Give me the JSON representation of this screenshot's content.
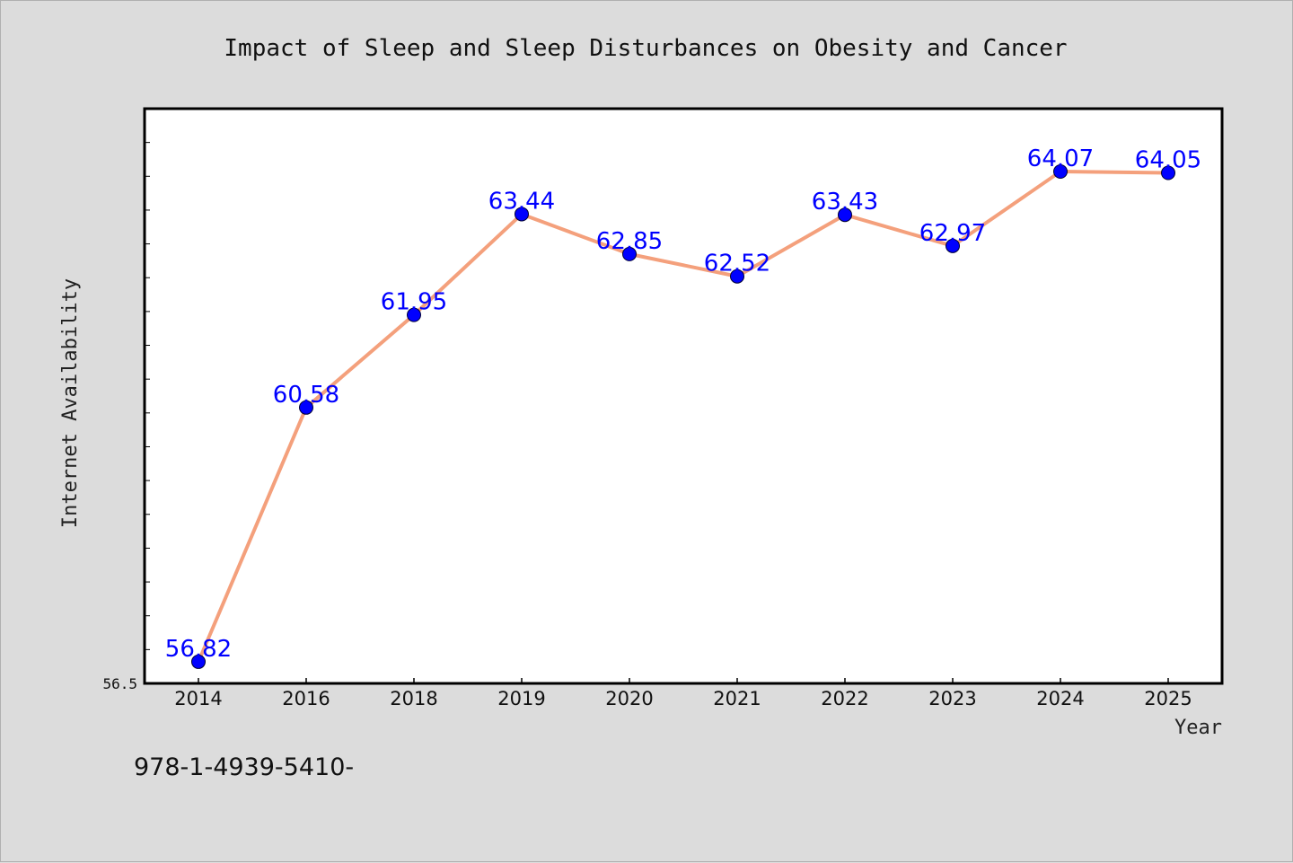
{
  "chart_data": {
    "type": "line",
    "title": "Impact of Sleep and Sleep Disturbances on Obesity and Cancer",
    "xlabel": "Year",
    "ylabel": "Internet Availability",
    "categories": [
      "2014",
      "2016",
      "2018",
      "2019",
      "2020",
      "2021",
      "2022",
      "2023",
      "2024",
      "2025"
    ],
    "series": [
      {
        "values": [
          56.82,
          60.58,
          61.95,
          63.44,
          62.85,
          62.52,
          63.43,
          62.97,
          64.07,
          64.05
        ]
      }
    ],
    "data_labels": [
      "56.82",
      "60.58",
      "61.95",
      "63.44",
      "62.85",
      "62.52",
      "63.43",
      "62.97",
      "64.07",
      "64.05"
    ],
    "ylim": [
      56.5,
      65.0
    ],
    "y_tick_labels": [
      "56.5"
    ],
    "grid": false,
    "colors": {
      "line": "#f4a07c",
      "marker": "#0000ff",
      "data_label": "#0000ff",
      "plot_bg": "#ffffff",
      "figure_bg": "#dcdcdc"
    }
  },
  "footnote": "978-1-4939-5410-"
}
